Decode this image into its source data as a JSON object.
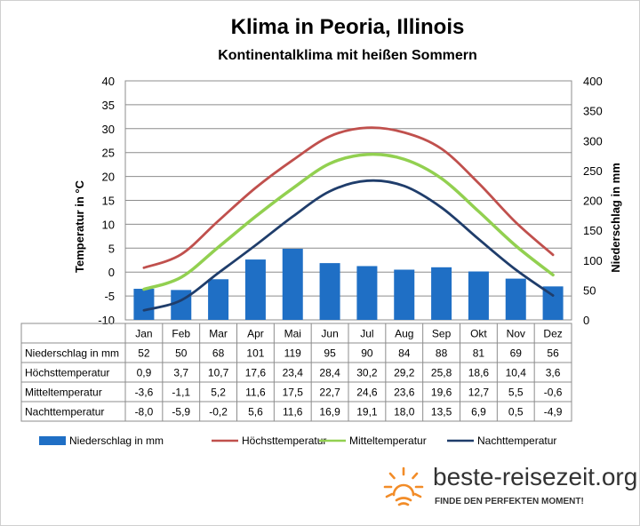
{
  "chart_data": {
    "type": "bar",
    "title": "Klima in Peoria, Illinois",
    "subtitle": "Kontinentalklima  mit heißen  Sommern",
    "categories": [
      "Jan",
      "Feb",
      "Mar",
      "Apr",
      "Mai",
      "Jun",
      "Jul",
      "Aug",
      "Sep",
      "Okt",
      "Nov",
      "Dez"
    ],
    "ylabel_left": "Temperatur in °C",
    "ylabel_right": "Niederschlag in mm",
    "ylim_left": [
      -10,
      40
    ],
    "ylim_right": [
      0,
      400
    ],
    "yticks_left": [
      -10,
      -5,
      0,
      5,
      10,
      15,
      20,
      25,
      30,
      35,
      40
    ],
    "yticks_right": [
      0,
      50,
      100,
      150,
      200,
      250,
      300,
      350,
      400
    ],
    "grid": true,
    "legend_position": "bottom",
    "series": [
      {
        "name": "Niederschlag in mm",
        "type": "bar",
        "axis": "right",
        "color": "#1F6FC5",
        "values": [
          52,
          50,
          68,
          101,
          119,
          95,
          90,
          84,
          88,
          81,
          69,
          56
        ]
      },
      {
        "name": "Höchsttemperatur",
        "type": "line",
        "axis": "left",
        "color": "#C0504D",
        "values": [
          0.9,
          3.7,
          10.7,
          17.6,
          23.4,
          28.4,
          30.2,
          29.2,
          25.8,
          18.6,
          10.4,
          3.6
        ]
      },
      {
        "name": "Mitteltemperatur",
        "type": "line",
        "axis": "left",
        "color": "#92D050",
        "values": [
          -3.6,
          -1.1,
          5.2,
          11.6,
          17.5,
          22.7,
          24.6,
          23.6,
          19.6,
          12.7,
          5.5,
          -0.6
        ]
      },
      {
        "name": "Nachttemperatur",
        "type": "line",
        "axis": "left",
        "color": "#1F3D6B",
        "values": [
          -8.0,
          -5.9,
          -0.2,
          5.6,
          11.6,
          16.9,
          19.1,
          18.0,
          13.5,
          6.9,
          0.5,
          -4.9
        ]
      }
    ],
    "table": [
      {
        "label": "Niederschlag in mm",
        "cells": [
          "52",
          "50",
          "68",
          "101",
          "119",
          "95",
          "90",
          "84",
          "88",
          "81",
          "69",
          "56"
        ]
      },
      {
        "label": "Höchsttemperatur",
        "cells": [
          "0,9",
          "3,7",
          "10,7",
          "17,6",
          "23,4",
          "28,4",
          "30,2",
          "29,2",
          "25,8",
          "18,6",
          "10,4",
          "3,6"
        ]
      },
      {
        "label": "Mitteltemperatur",
        "cells": [
          "-3,6",
          "-1,1",
          "5,2",
          "11,6",
          "17,5",
          "22,7",
          "24,6",
          "23,6",
          "19,6",
          "12,7",
          "5,5",
          "-0,6"
        ]
      },
      {
        "label": "Nachttemperatur",
        "cells": [
          "-8,0",
          "-5,9",
          "-0,2",
          "5,6",
          "11,6",
          "16,9",
          "19,1",
          "18,0",
          "13,5",
          "6,9",
          "0,5",
          "-4,9"
        ]
      }
    ]
  },
  "brand": {
    "name": "beste-reisezeit.org",
    "tagline": "FINDE DEN PERFEKTEN MOMENT!",
    "icon": "sun-icon",
    "icon_color": "#F28C28"
  }
}
